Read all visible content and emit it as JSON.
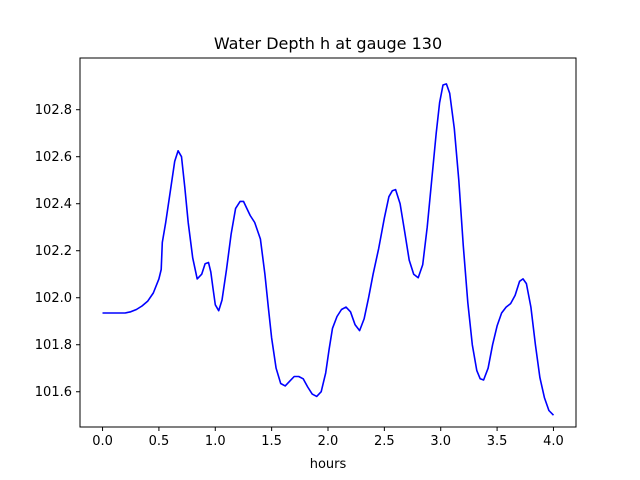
{
  "chart_data": {
    "type": "line",
    "title": "Water Depth h at gauge 130",
    "xlabel": "hours",
    "ylabel": "",
    "xlim": [
      -0.2,
      4.2
    ],
    "ylim": [
      101.45,
      103.02
    ],
    "xticks": [
      0.0,
      0.5,
      1.0,
      1.5,
      2.0,
      2.5,
      3.0,
      3.5,
      4.0
    ],
    "xtick_labels": [
      "0.0",
      "0.5",
      "1.0",
      "1.5",
      "2.0",
      "2.5",
      "3.0",
      "3.5",
      "4.0"
    ],
    "yticks": [
      101.6,
      101.8,
      102.0,
      102.2,
      102.4,
      102.6,
      102.8
    ],
    "ytick_labels": [
      "101.6",
      "101.8",
      "102.0",
      "102.2",
      "102.4",
      "102.6",
      "102.8"
    ],
    "grid": false,
    "series": [
      {
        "color": "#0000ff",
        "x": [
          0.0,
          0.1,
          0.2,
          0.25,
          0.3,
          0.35,
          0.4,
          0.45,
          0.5,
          0.52,
          0.53,
          0.56,
          0.6,
          0.64,
          0.67,
          0.7,
          0.73,
          0.76,
          0.8,
          0.84,
          0.88,
          0.91,
          0.94,
          0.96,
          0.98,
          1.0,
          1.03,
          1.06,
          1.1,
          1.14,
          1.18,
          1.22,
          1.25,
          1.28,
          1.31,
          1.35,
          1.4,
          1.44,
          1.47,
          1.5,
          1.54,
          1.58,
          1.62,
          1.66,
          1.7,
          1.74,
          1.78,
          1.82,
          1.86,
          1.9,
          1.94,
          1.98,
          2.01,
          2.04,
          2.08,
          2.12,
          2.16,
          2.2,
          2.24,
          2.28,
          2.32,
          2.36,
          2.4,
          2.45,
          2.5,
          2.54,
          2.57,
          2.6,
          2.64,
          2.68,
          2.72,
          2.76,
          2.8,
          2.84,
          2.88,
          2.92,
          2.96,
          2.99,
          3.02,
          3.05,
          3.08,
          3.12,
          3.16,
          3.2,
          3.24,
          3.28,
          3.32,
          3.35,
          3.38,
          3.42,
          3.46,
          3.5,
          3.54,
          3.58,
          3.62,
          3.66,
          3.7,
          3.73,
          3.76,
          3.8,
          3.84,
          3.88,
          3.92,
          3.96,
          4.0
        ],
        "y": [
          101.935,
          101.935,
          101.935,
          101.94,
          101.95,
          101.965,
          101.985,
          102.02,
          102.08,
          102.12,
          102.235,
          102.32,
          102.45,
          102.58,
          102.625,
          102.6,
          102.47,
          102.32,
          102.17,
          102.08,
          102.1,
          102.145,
          102.15,
          102.11,
          102.04,
          101.97,
          101.945,
          101.99,
          102.12,
          102.27,
          102.38,
          102.41,
          102.41,
          102.38,
          102.35,
          102.32,
          102.25,
          102.1,
          101.96,
          101.83,
          101.7,
          101.635,
          101.625,
          101.645,
          101.665,
          101.665,
          101.655,
          101.62,
          101.59,
          101.58,
          101.6,
          101.68,
          101.78,
          101.87,
          101.92,
          101.95,
          101.96,
          101.94,
          101.885,
          101.86,
          101.91,
          102.0,
          102.1,
          102.21,
          102.34,
          102.43,
          102.455,
          102.46,
          102.4,
          102.28,
          102.16,
          102.1,
          102.085,
          102.14,
          102.3,
          102.5,
          102.7,
          102.83,
          102.905,
          102.91,
          102.87,
          102.72,
          102.5,
          102.22,
          101.98,
          101.8,
          101.69,
          101.655,
          101.65,
          101.7,
          101.8,
          101.88,
          101.935,
          101.96,
          101.975,
          102.01,
          102.07,
          102.08,
          102.06,
          101.96,
          101.8,
          101.66,
          101.575,
          101.52,
          101.5
        ]
      }
    ]
  }
}
